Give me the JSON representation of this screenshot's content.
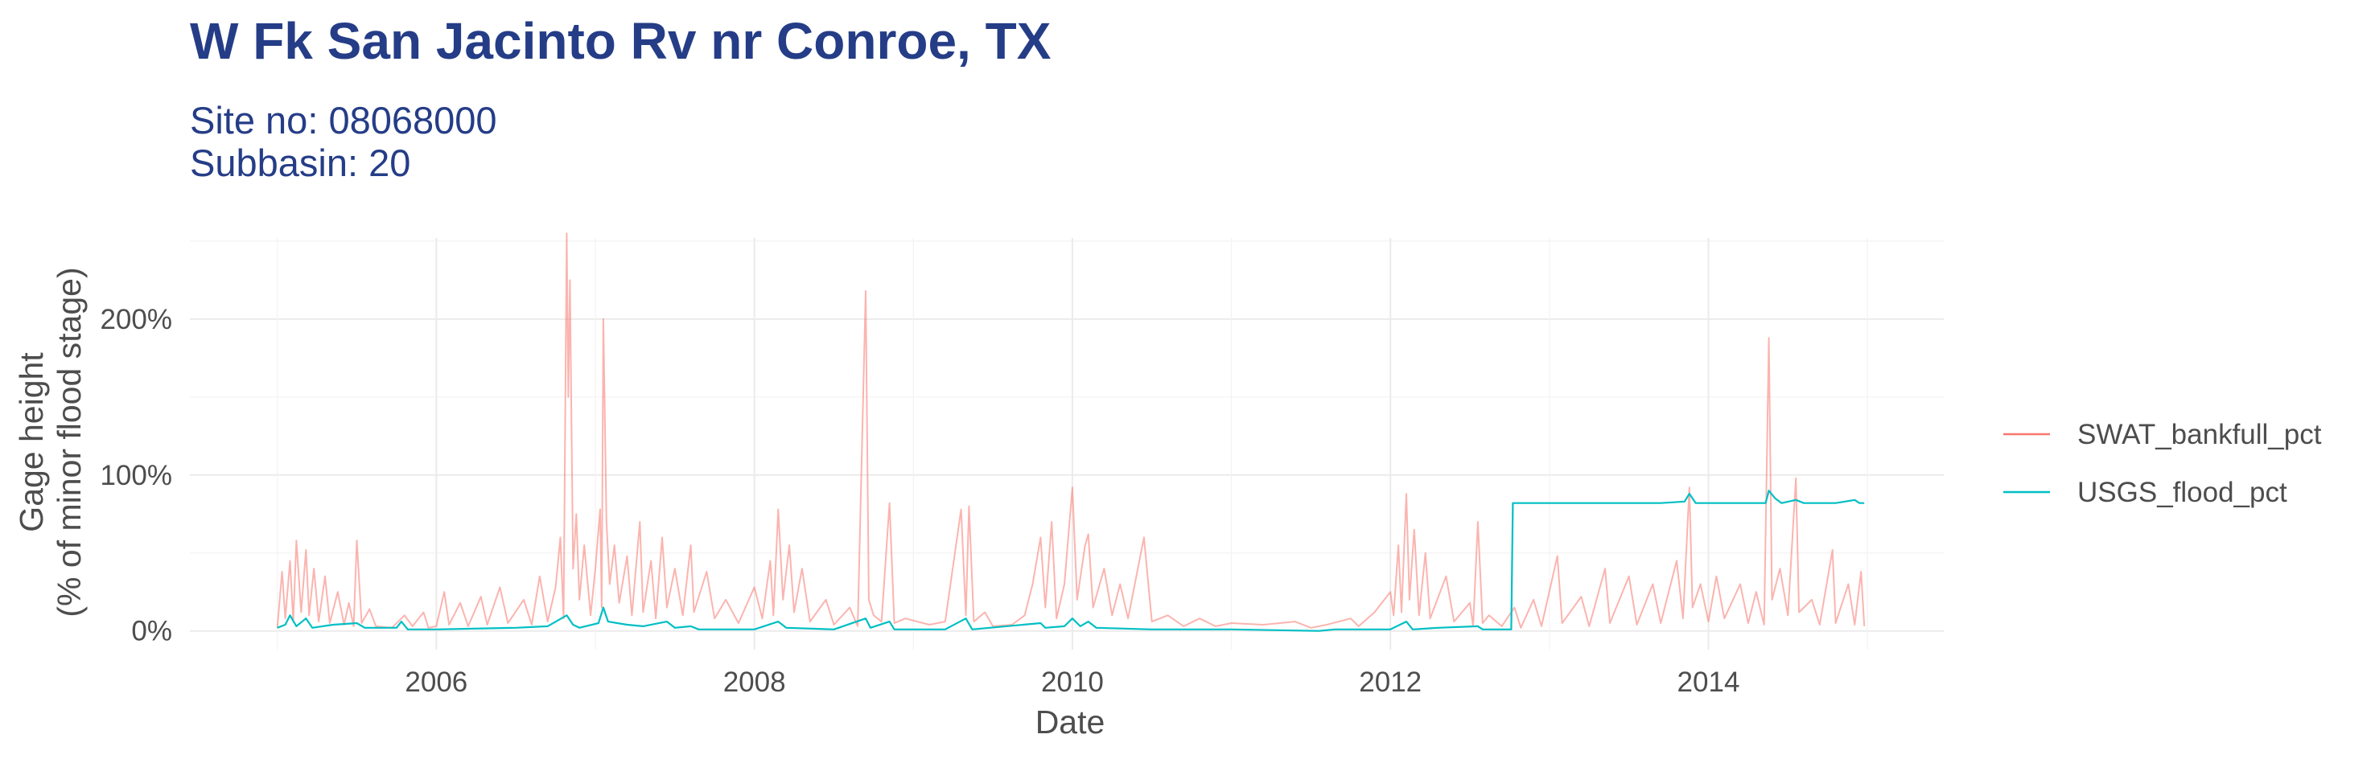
{
  "chart_data": {
    "type": "line",
    "title": "W Fk San Jacinto Rv nr Conroe, TX",
    "subtitle_lines": [
      "Site no: 08068000",
      "Subbasin: 20"
    ],
    "xlabel": "Date",
    "ylabel_lines": [
      "Gage height",
      "(% of minor flood stage)"
    ],
    "x_tick_labels": [
      "2006",
      "2008",
      "2010",
      "2012",
      "2014"
    ],
    "x_tick_values": [
      2006,
      2008,
      2010,
      2012,
      2014
    ],
    "y_tick_labels": [
      "0%",
      "100%",
      "200%"
    ],
    "y_tick_values": [
      0,
      100,
      200
    ],
    "xlim": [
      2004.45,
      2015.48
    ],
    "ylim": [
      -12,
      252
    ],
    "grid": true,
    "legend_position": "right",
    "series": [
      {
        "name": "SWAT_bankfull_pct",
        "color": "#f8766d",
        "points": [
          [
            2005.0,
            2
          ],
          [
            2005.03,
            38
          ],
          [
            2005.05,
            8
          ],
          [
            2005.08,
            45
          ],
          [
            2005.1,
            6
          ],
          [
            2005.12,
            58
          ],
          [
            2005.15,
            12
          ],
          [
            2005.18,
            52
          ],
          [
            2005.2,
            10
          ],
          [
            2005.23,
            40
          ],
          [
            2005.26,
            6
          ],
          [
            2005.3,
            35
          ],
          [
            2005.33,
            5
          ],
          [
            2005.38,
            25
          ],
          [
            2005.42,
            4
          ],
          [
            2005.45,
            18
          ],
          [
            2005.48,
            3
          ],
          [
            2005.5,
            58
          ],
          [
            2005.53,
            5
          ],
          [
            2005.58,
            14
          ],
          [
            2005.62,
            3
          ],
          [
            2005.72,
            2
          ],
          [
            2005.8,
            10
          ],
          [
            2005.85,
            3
          ],
          [
            2005.92,
            12
          ],
          [
            2005.95,
            2
          ],
          [
            2006.0,
            3
          ],
          [
            2006.05,
            25
          ],
          [
            2006.08,
            4
          ],
          [
            2006.15,
            18
          ],
          [
            2006.2,
            3
          ],
          [
            2006.28,
            22
          ],
          [
            2006.32,
            4
          ],
          [
            2006.4,
            28
          ],
          [
            2006.45,
            5
          ],
          [
            2006.55,
            20
          ],
          [
            2006.6,
            4
          ],
          [
            2006.65,
            35
          ],
          [
            2006.7,
            6
          ],
          [
            2006.75,
            28
          ],
          [
            2006.78,
            60
          ],
          [
            2006.8,
            8
          ],
          [
            2006.82,
            255
          ],
          [
            2006.83,
            150
          ],
          [
            2006.84,
            225
          ],
          [
            2006.86,
            40
          ],
          [
            2006.88,
            75
          ],
          [
            2006.9,
            20
          ],
          [
            2006.93,
            55
          ],
          [
            2006.97,
            10
          ],
          [
            2007.0,
            40
          ],
          [
            2007.03,
            78
          ],
          [
            2007.04,
            15
          ],
          [
            2007.05,
            200
          ],
          [
            2007.07,
            70
          ],
          [
            2007.09,
            30
          ],
          [
            2007.12,
            55
          ],
          [
            2007.15,
            18
          ],
          [
            2007.2,
            48
          ],
          [
            2007.23,
            10
          ],
          [
            2007.28,
            70
          ],
          [
            2007.3,
            12
          ],
          [
            2007.35,
            45
          ],
          [
            2007.38,
            8
          ],
          [
            2007.42,
            60
          ],
          [
            2007.45,
            15
          ],
          [
            2007.5,
            40
          ],
          [
            2007.55,
            10
          ],
          [
            2007.6,
            55
          ],
          [
            2007.62,
            12
          ],
          [
            2007.7,
            38
          ],
          [
            2007.75,
            8
          ],
          [
            2007.82,
            20
          ],
          [
            2007.9,
            5
          ],
          [
            2008.0,
            28
          ],
          [
            2008.05,
            8
          ],
          [
            2008.1,
            45
          ],
          [
            2008.12,
            10
          ],
          [
            2008.15,
            78
          ],
          [
            2008.18,
            20
          ],
          [
            2008.22,
            55
          ],
          [
            2008.25,
            12
          ],
          [
            2008.3,
            40
          ],
          [
            2008.35,
            6
          ],
          [
            2008.45,
            20
          ],
          [
            2008.5,
            4
          ],
          [
            2008.6,
            15
          ],
          [
            2008.65,
            3
          ],
          [
            2008.7,
            218
          ],
          [
            2008.72,
            20
          ],
          [
            2008.75,
            10
          ],
          [
            2008.8,
            6
          ],
          [
            2008.85,
            82
          ],
          [
            2008.88,
            5
          ],
          [
            2008.95,
            8
          ],
          [
            2009.1,
            4
          ],
          [
            2009.2,
            6
          ],
          [
            2009.3,
            78
          ],
          [
            2009.33,
            10
          ],
          [
            2009.35,
            80
          ],
          [
            2009.38,
            6
          ],
          [
            2009.45,
            12
          ],
          [
            2009.5,
            3
          ],
          [
            2009.62,
            4
          ],
          [
            2009.7,
            10
          ],
          [
            2009.75,
            30
          ],
          [
            2009.8,
            60
          ],
          [
            2009.83,
            15
          ],
          [
            2009.87,
            70
          ],
          [
            2009.9,
            8
          ],
          [
            2009.95,
            30
          ],
          [
            2010.0,
            92
          ],
          [
            2010.03,
            20
          ],
          [
            2010.08,
            55
          ],
          [
            2010.1,
            62
          ],
          [
            2010.13,
            15
          ],
          [
            2010.2,
            40
          ],
          [
            2010.25,
            10
          ],
          [
            2010.3,
            30
          ],
          [
            2010.35,
            8
          ],
          [
            2010.45,
            60
          ],
          [
            2010.5,
            6
          ],
          [
            2010.6,
            10
          ],
          [
            2010.7,
            3
          ],
          [
            2010.8,
            8
          ],
          [
            2010.9,
            3
          ],
          [
            2011.0,
            5
          ],
          [
            2011.2,
            4
          ],
          [
            2011.4,
            6
          ],
          [
            2011.5,
            2
          ],
          [
            2011.6,
            4
          ],
          [
            2011.75,
            8
          ],
          [
            2011.8,
            3
          ],
          [
            2011.9,
            12
          ],
          [
            2012.0,
            25
          ],
          [
            2012.02,
            10
          ],
          [
            2012.05,
            55
          ],
          [
            2012.07,
            12
          ],
          [
            2012.1,
            88
          ],
          [
            2012.12,
            20
          ],
          [
            2012.15,
            65
          ],
          [
            2012.18,
            10
          ],
          [
            2012.22,
            50
          ],
          [
            2012.25,
            8
          ],
          [
            2012.35,
            35
          ],
          [
            2012.4,
            6
          ],
          [
            2012.5,
            18
          ],
          [
            2012.52,
            3
          ],
          [
            2012.55,
            70
          ],
          [
            2012.58,
            5
          ],
          [
            2012.62,
            10
          ],
          [
            2012.7,
            3
          ],
          [
            2012.78,
            15
          ],
          [
            2012.82,
            2
          ],
          [
            2012.9,
            20
          ],
          [
            2012.95,
            3
          ],
          [
            2013.05,
            48
          ],
          [
            2013.08,
            5
          ],
          [
            2013.2,
            22
          ],
          [
            2013.25,
            3
          ],
          [
            2013.35,
            40
          ],
          [
            2013.38,
            5
          ],
          [
            2013.5,
            35
          ],
          [
            2013.55,
            4
          ],
          [
            2013.65,
            30
          ],
          [
            2013.7,
            5
          ],
          [
            2013.8,
            45
          ],
          [
            2013.84,
            8
          ],
          [
            2013.88,
            92
          ],
          [
            2013.9,
            15
          ],
          [
            2013.95,
            30
          ],
          [
            2014.0,
            6
          ],
          [
            2014.05,
            35
          ],
          [
            2014.1,
            8
          ],
          [
            2014.2,
            30
          ],
          [
            2014.25,
            5
          ],
          [
            2014.3,
            25
          ],
          [
            2014.35,
            4
          ],
          [
            2014.38,
            188
          ],
          [
            2014.4,
            20
          ],
          [
            2014.45,
            40
          ],
          [
            2014.5,
            10
          ],
          [
            2014.55,
            98
          ],
          [
            2014.57,
            12
          ],
          [
            2014.65,
            20
          ],
          [
            2014.7,
            4
          ],
          [
            2014.78,
            52
          ],
          [
            2014.8,
            5
          ],
          [
            2014.88,
            30
          ],
          [
            2014.92,
            4
          ],
          [
            2014.96,
            38
          ],
          [
            2014.98,
            3
          ]
        ]
      },
      {
        "name": "USGS_flood_pct",
        "color": "#00bfc4",
        "points": [
          [
            2005.0,
            2
          ],
          [
            2005.05,
            4
          ],
          [
            2005.08,
            10
          ],
          [
            2005.12,
            3
          ],
          [
            2005.18,
            8
          ],
          [
            2005.22,
            2
          ],
          [
            2005.35,
            4
          ],
          [
            2005.5,
            5
          ],
          [
            2005.55,
            2
          ],
          [
            2005.75,
            2
          ],
          [
            2005.78,
            6
          ],
          [
            2005.82,
            1
          ],
          [
            2006.0,
            1
          ],
          [
            2006.5,
            2
          ],
          [
            2006.7,
            3
          ],
          [
            2006.82,
            10
          ],
          [
            2006.86,
            4
          ],
          [
            2006.9,
            2
          ],
          [
            2007.02,
            5
          ],
          [
            2007.05,
            15
          ],
          [
            2007.08,
            6
          ],
          [
            2007.2,
            4
          ],
          [
            2007.3,
            3
          ],
          [
            2007.45,
            6
          ],
          [
            2007.5,
            2
          ],
          [
            2007.6,
            3
          ],
          [
            2007.65,
            1
          ],
          [
            2008.0,
            1
          ],
          [
            2008.15,
            6
          ],
          [
            2008.2,
            2
          ],
          [
            2008.5,
            1
          ],
          [
            2008.7,
            8
          ],
          [
            2008.73,
            2
          ],
          [
            2008.85,
            6
          ],
          [
            2008.88,
            1
          ],
          [
            2009.2,
            1
          ],
          [
            2009.33,
            8
          ],
          [
            2009.37,
            1
          ],
          [
            2009.8,
            5
          ],
          [
            2009.83,
            2
          ],
          [
            2009.95,
            3
          ],
          [
            2010.0,
            8
          ],
          [
            2010.05,
            3
          ],
          [
            2010.1,
            6
          ],
          [
            2010.15,
            2
          ],
          [
            2010.5,
            1
          ],
          [
            2011.0,
            1
          ],
          [
            2011.55,
            0
          ],
          [
            2011.65,
            1
          ],
          [
            2012.0,
            1
          ],
          [
            2012.1,
            6
          ],
          [
            2012.14,
            1
          ],
          [
            2012.3,
            2
          ],
          [
            2012.55,
            3
          ],
          [
            2012.58,
            1
          ],
          [
            2012.76,
            1
          ],
          [
            2012.77,
            82
          ],
          [
            2013.0,
            82
          ],
          [
            2013.2,
            82
          ],
          [
            2013.5,
            82
          ],
          [
            2013.7,
            82
          ],
          [
            2013.85,
            83
          ],
          [
            2013.88,
            88
          ],
          [
            2013.92,
            82
          ],
          [
            2014.2,
            82
          ],
          [
            2014.36,
            82
          ],
          [
            2014.38,
            90
          ],
          [
            2014.42,
            85
          ],
          [
            2014.46,
            82
          ],
          [
            2014.55,
            84
          ],
          [
            2014.6,
            82
          ],
          [
            2014.8,
            82
          ],
          [
            2014.92,
            84
          ],
          [
            2014.95,
            82
          ],
          [
            2014.98,
            82
          ]
        ]
      }
    ]
  }
}
